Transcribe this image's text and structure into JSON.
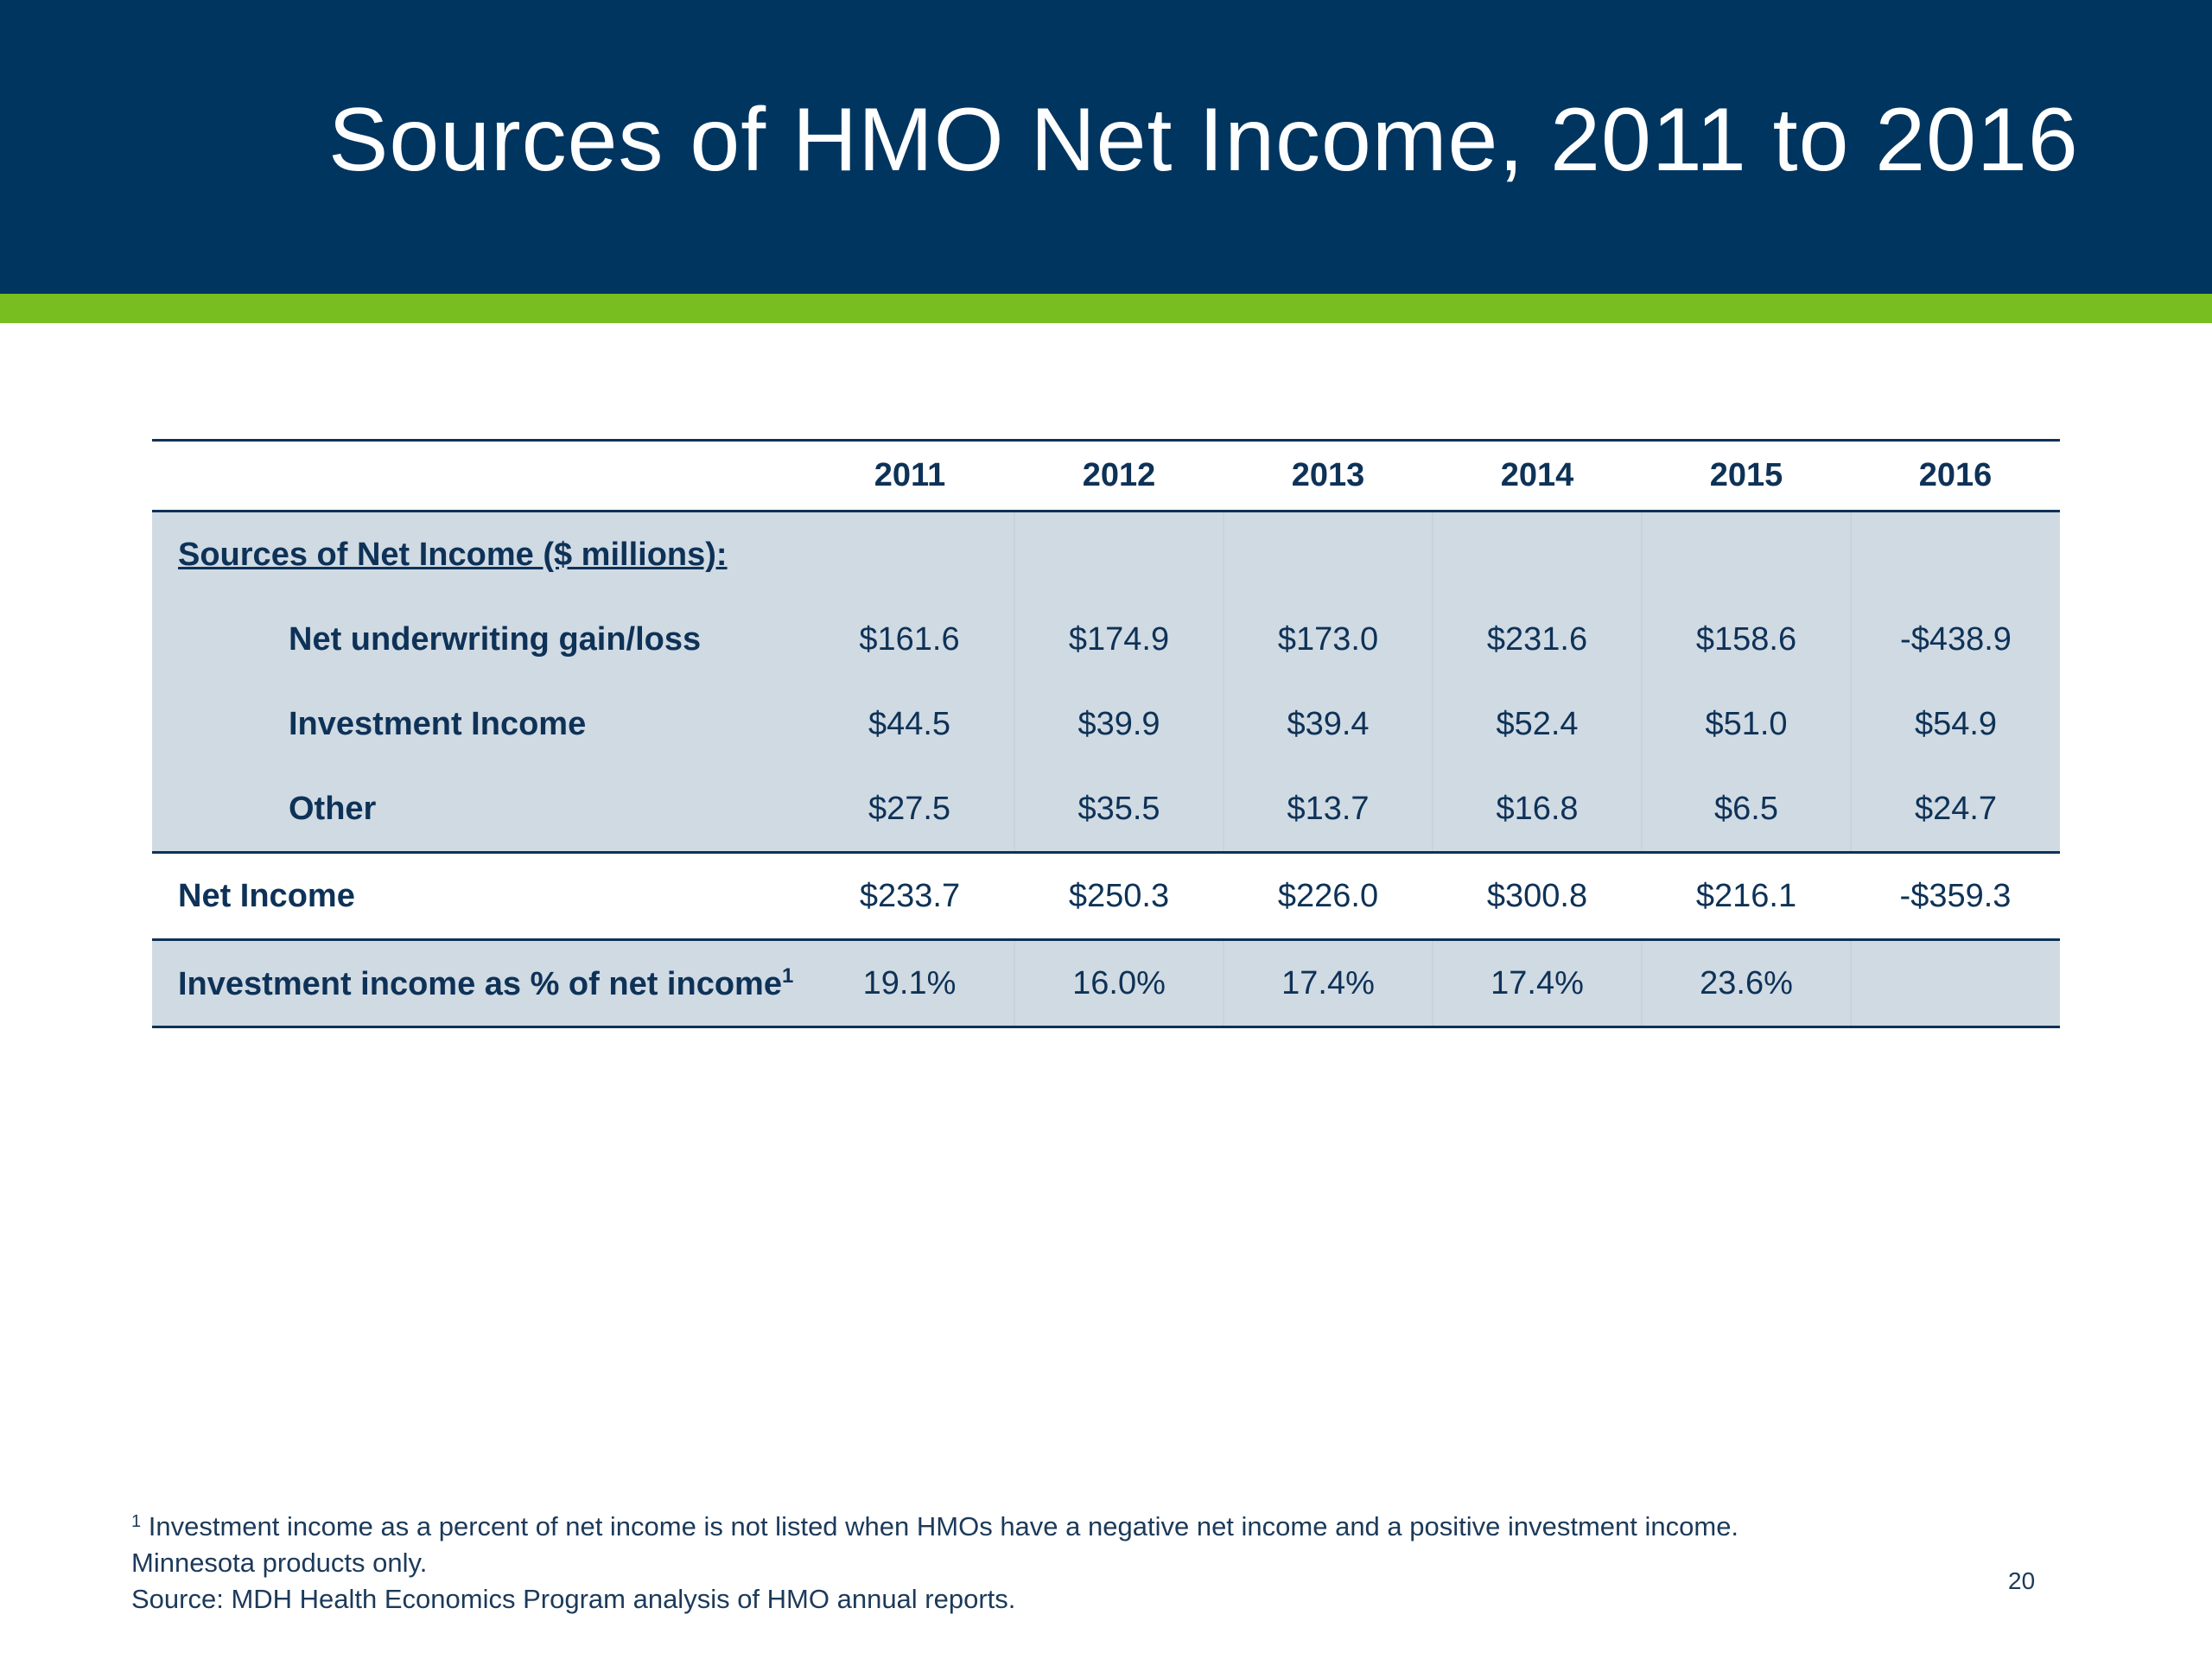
{
  "slide": {
    "title": "Sources of HMO Net Income, 2011 to 2016",
    "page_number": "20"
  },
  "table": {
    "years": [
      "2011",
      "2012",
      "2013",
      "2014",
      "2015",
      "2016"
    ],
    "section_label": "Sources of Net Income ($ millions):",
    "rows": [
      {
        "label": "Net underwriting gain/loss",
        "values": [
          "$161.6",
          "$174.9",
          "$173.0",
          "$231.6",
          "$158.6",
          "-$438.9"
        ]
      },
      {
        "label": "Investment Income",
        "values": [
          "$44.5",
          "$39.9",
          "$39.4",
          "$52.4",
          "$51.0",
          "$54.9"
        ]
      },
      {
        "label": "Other",
        "values": [
          "$27.5",
          "$35.5",
          "$13.7",
          "$16.8",
          "$6.5",
          "$24.7"
        ]
      }
    ],
    "net_income": {
      "label": "Net Income",
      "values": [
        "$233.7",
        "$250.3",
        "$226.0",
        "$300.8",
        "$216.1",
        "-$359.3"
      ]
    },
    "investment_pct": {
      "label": "Investment income as % of net income",
      "footnote_mark": "1",
      "values": [
        "19.1%",
        "16.0%",
        "17.4%",
        "17.4%",
        "23.6%",
        ""
      ]
    }
  },
  "footnotes": {
    "mark": "1",
    "note1": "Investment income as a percent of net income is not listed when HMOs have a negative net income and a positive investment income.",
    "note2": "Minnesota products only.",
    "source": "Source: MDH Health Economics Program analysis of HMO annual reports."
  },
  "colors": {
    "header_bg": "#003560",
    "accent_green": "#78be20",
    "row_shade": "#d0dae3",
    "text_navy": "#0e3257"
  }
}
